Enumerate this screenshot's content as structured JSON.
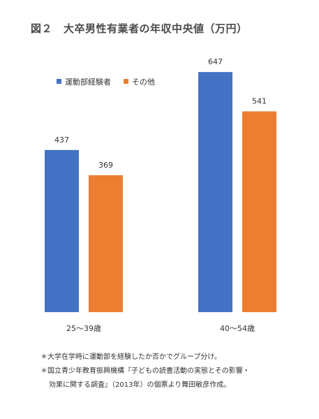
{
  "title": {
    "figure_label": "図２",
    "text": "大卒男性有業者の年収中央値（万円）"
  },
  "chart_data": {
    "type": "bar",
    "categories": [
      "25〜39歳",
      "40〜54歳"
    ],
    "series": [
      {
        "name": "運動部経験者",
        "values": [
          437,
          647
        ],
        "color": "#4472c4"
      },
      {
        "name": "その他",
        "values": [
          369,
          541
        ],
        "color": "#ed7d31"
      }
    ],
    "ylim": [
      0,
      700
    ],
    "grid": false,
    "legend_position": "top-left",
    "data_labels": true
  },
  "notes": {
    "line1": "＊大学在学時に運動部を経験したか否かでグループ分け。",
    "line2": "＊国立青少年教育振興機構『子どもの読書活動の実態とその影響・",
    "line3": "効果に関する調査』（2013年）の個票より舞田敏彦作成。"
  }
}
